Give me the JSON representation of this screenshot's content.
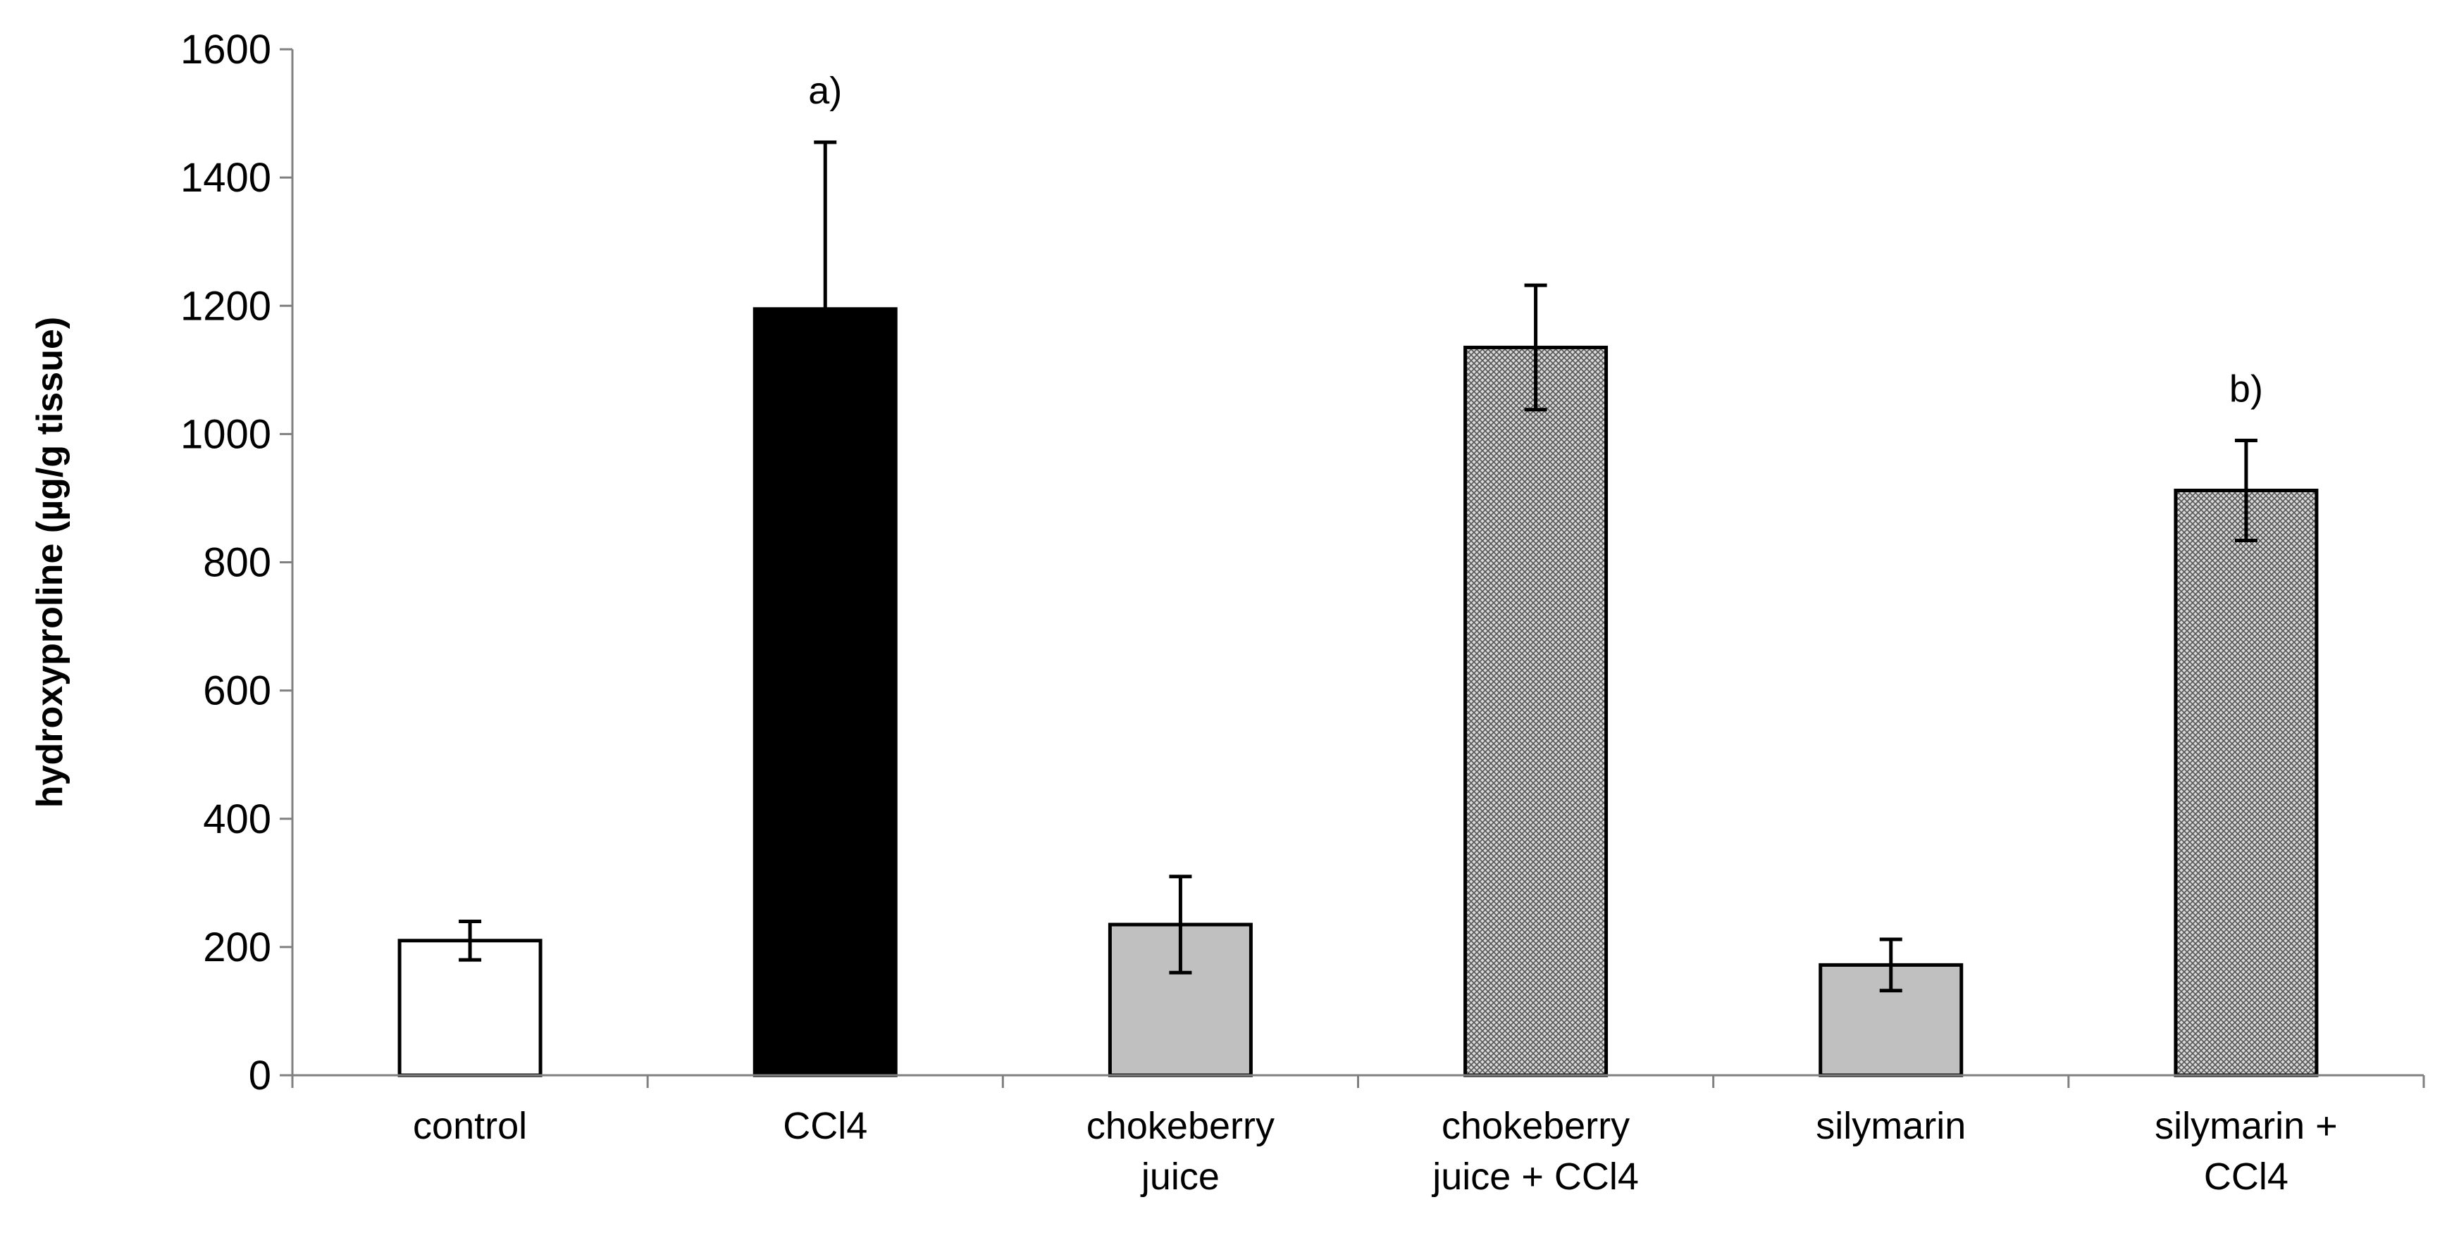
{
  "chart_data": {
    "type": "bar",
    "title": "",
    "xlabel": "",
    "ylabel": "hydroxyproline (µg/g tissue)",
    "ylim": [
      0,
      1600
    ],
    "yticks": [
      0,
      200,
      400,
      600,
      800,
      1000,
      1200,
      1400,
      1600
    ],
    "grid": false,
    "legend": "none",
    "categories": [
      [
        "control"
      ],
      [
        "CCl4"
      ],
      [
        "chokeberry",
        "juice"
      ],
      [
        "chokeberry",
        "juice + CCl4"
      ],
      [
        "silymarin"
      ],
      [
        "silymarin +",
        "CCl4"
      ]
    ],
    "values": [
      210,
      1195,
      235,
      1135,
      172,
      912
    ],
    "errors": [
      30,
      260,
      75,
      97,
      40,
      78
    ],
    "fills": [
      "white",
      "black",
      "gray",
      "hatched",
      "gray",
      "hatched"
    ],
    "colors": {
      "white": "#ffffff",
      "black": "#000000",
      "gray": "#c0c0c0",
      "hatch_fg": "#555555",
      "hatch_bg": "#d8d8d8"
    },
    "annotations": [
      {
        "category_index": 1,
        "text": "a)"
      },
      {
        "category_index": 5,
        "text": "b)"
      }
    ]
  }
}
